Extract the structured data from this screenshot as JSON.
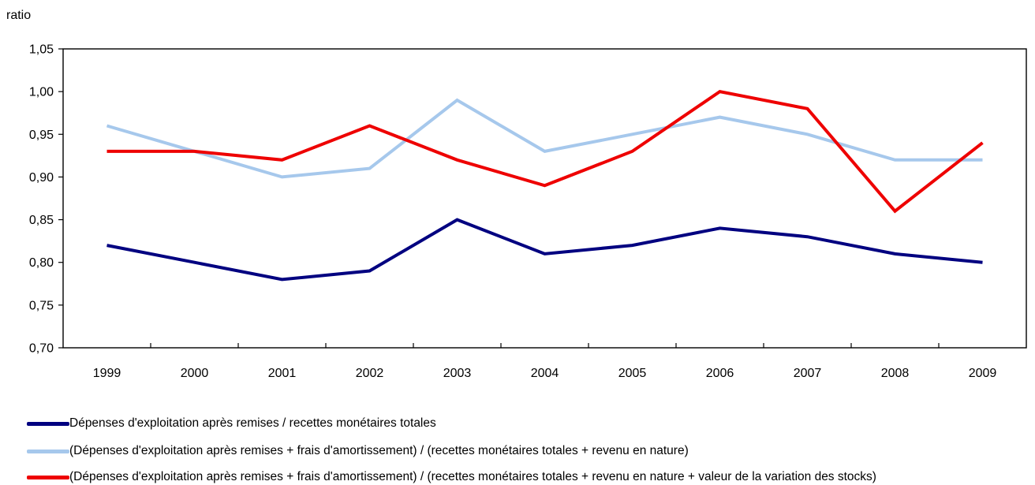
{
  "chart_data": {
    "type": "line",
    "title": "",
    "xlabel": "",
    "ylabel": "ratio",
    "categories": [
      "1999",
      "2000",
      "2001",
      "2002",
      "2003",
      "2004",
      "2005",
      "2006",
      "2007",
      "2008",
      "2009"
    ],
    "ylim": [
      0.7,
      1.05
    ],
    "yticks": [
      "0,70",
      "0,75",
      "0,80",
      "0,85",
      "0,90",
      "0,95",
      "1,00",
      "1,05"
    ],
    "grid": false,
    "legend_position": "bottom",
    "series": [
      {
        "name": "Dépenses d'exploitation après remises / recettes monétaires totales",
        "color": "#000080",
        "values": [
          0.82,
          0.8,
          0.78,
          0.79,
          0.85,
          0.81,
          0.82,
          0.84,
          0.83,
          0.81,
          0.8
        ]
      },
      {
        "name": "(Dépenses d'exploitation après remises + frais d'amortissement) / (recettes monétaires totales + revenu en nature)",
        "color": "#a6c8ec",
        "values": [
          0.96,
          0.93,
          0.9,
          0.91,
          0.99,
          0.93,
          0.95,
          0.97,
          0.95,
          0.92,
          0.92
        ]
      },
      {
        "name": "(Dépenses d'exploitation après remises + frais d'amortissement) / (recettes monétaires totales + revenu en nature + valeur de la variation des stocks)",
        "color": "#ee0000",
        "values": [
          0.93,
          0.93,
          0.92,
          0.96,
          0.92,
          0.89,
          0.93,
          1.0,
          0.98,
          0.86,
          0.94
        ]
      }
    ]
  }
}
